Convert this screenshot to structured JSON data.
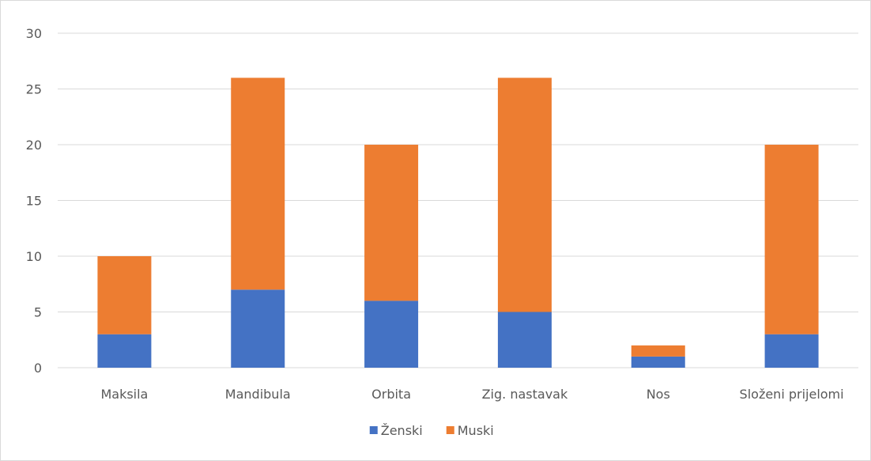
{
  "chart_data": {
    "type": "bar",
    "stacked": true,
    "title": "",
    "xlabel": "",
    "ylabel": "",
    "categories": [
      "Maksila",
      "Mandibula",
      "Orbita",
      "Zig. nastavak",
      "Nos",
      "Složeni prijelomi"
    ],
    "series": [
      {
        "name": "Ženski",
        "color": "#4472c4",
        "values": [
          3,
          7,
          6,
          5,
          1,
          3
        ]
      },
      {
        "name": "Muski",
        "color": "#ed7d31",
        "values": [
          7,
          19,
          14,
          21,
          1,
          17
        ]
      }
    ],
    "ylim": [
      0,
      30
    ],
    "yticks": [
      0,
      5,
      10,
      15,
      20,
      25,
      30
    ],
    "grid": true,
    "legend": "bottom-center"
  }
}
